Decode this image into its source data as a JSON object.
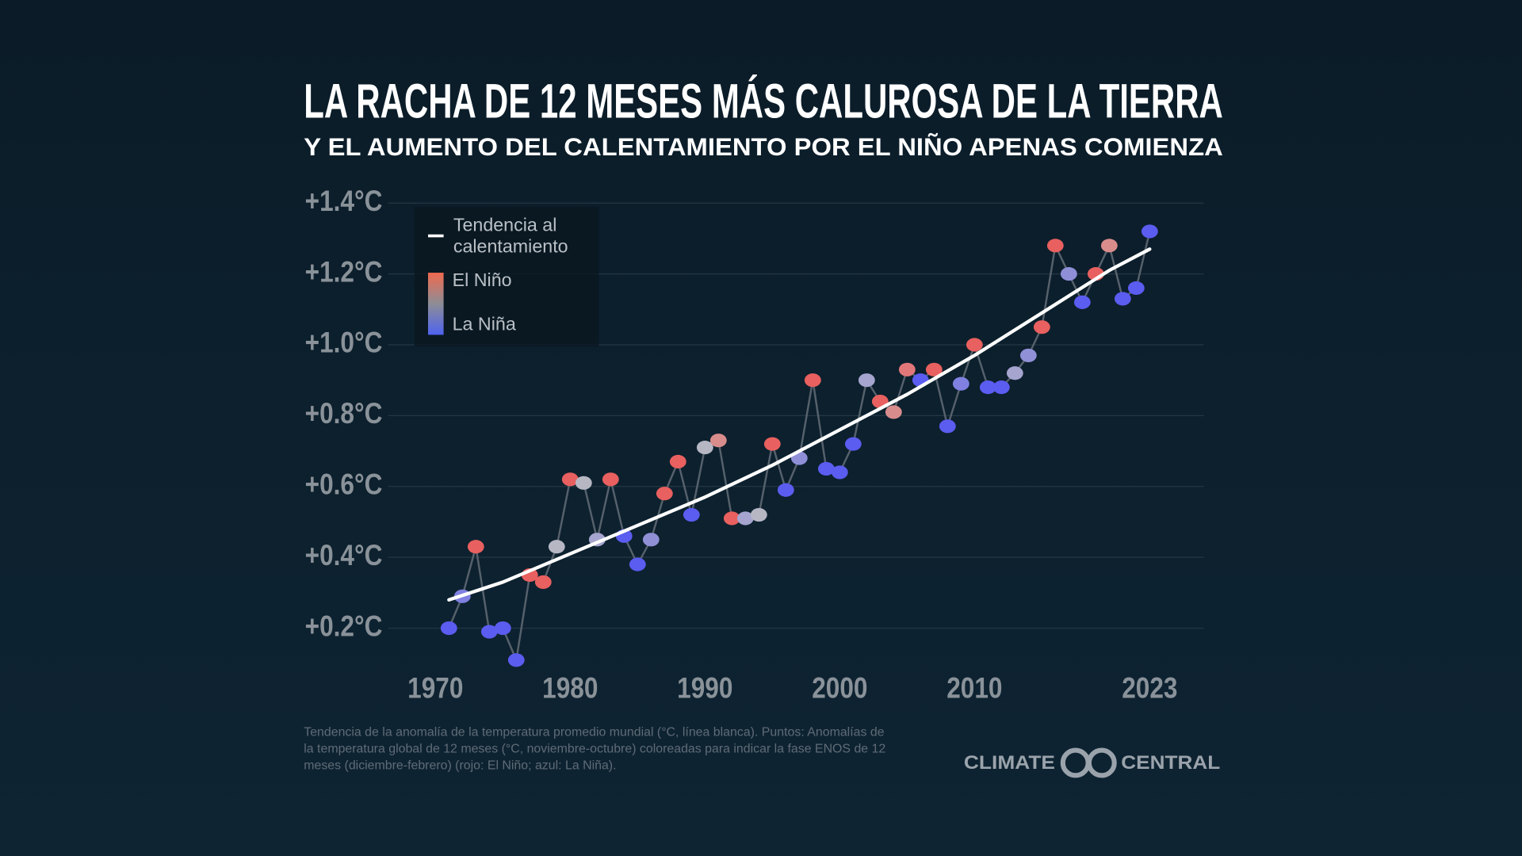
{
  "chart_data": {
    "type": "scatter",
    "title": "LA RACHA DE 12 MESES MÁS CALUROSA DE LA TIERRA",
    "subtitle": "Y EL AUMENTO DEL CALENTAMIENTO POR EL NIÑO APENAS COMIENZA",
    "xlim": [
      1966.5,
      2027
    ],
    "xticks": [
      1970,
      1980,
      1990,
      2000,
      2010,
      2023
    ],
    "ylim": [
      0.05,
      1.45
    ],
    "yticks": [
      {
        "value": 0.2,
        "label": "+0.2°C"
      },
      {
        "value": 0.4,
        "label": "+0.4°C"
      },
      {
        "value": 0.6,
        "label": "+0.6°C"
      },
      {
        "value": 0.8,
        "label": "+0.8°C"
      },
      {
        "value": 1.0,
        "label": "+1.0°C"
      },
      {
        "value": 1.2,
        "label": "+1.2°C"
      },
      {
        "value": 1.4,
        "label": "+1.4°C"
      }
    ],
    "grid": true,
    "legend": {
      "corner": "upper left",
      "trend": [
        "Tendencia al",
        "calentamiento"
      ],
      "warm": "El Niño",
      "cold": "La Niña",
      "warm_color": "#ef6a4f",
      "cold_color": "#4f63f0"
    },
    "points": {
      "line_color": "#56616c",
      "x": [
        1971,
        1972,
        1973,
        1974,
        1975,
        1976,
        1977,
        1978,
        1979,
        1980,
        1981,
        1982,
        1983,
        1984,
        1985,
        1986,
        1987,
        1988,
        1989,
        1990,
        1991,
        1992,
        1993,
        1994,
        1995,
        1996,
        1997,
        1998,
        1999,
        2000,
        2001,
        2002,
        2003,
        2004,
        2005,
        2006,
        2007,
        2008,
        2009,
        2010,
        2011,
        2012,
        2013,
        2014,
        2015,
        2016,
        2017,
        2018,
        2019,
        2020,
        2021,
        2022,
        2023
      ],
      "values": [
        0.2,
        0.29,
        0.43,
        0.19,
        0.2,
        0.11,
        0.35,
        0.33,
        0.43,
        0.62,
        0.61,
        0.45,
        0.62,
        0.46,
        0.38,
        0.45,
        0.58,
        0.67,
        0.52,
        0.71,
        0.73,
        0.51,
        0.51,
        0.52,
        0.72,
        0.59,
        0.68,
        0.9,
        0.65,
        0.64,
        0.72,
        0.9,
        0.84,
        0.81,
        0.93,
        0.9,
        0.93,
        0.77,
        0.89,
        1.0,
        0.88,
        0.88,
        0.92,
        0.97,
        1.05,
        1.28,
        1.2,
        1.12,
        1.2,
        1.28,
        1.13,
        1.16,
        1.32
      ],
      "colors": [
        "#5b5cf0",
        "#7f80e0",
        "#e8605f",
        "#5b5cf0",
        "#5b5cf0",
        "#5b5cf0",
        "#e8605f",
        "#e8605f",
        "#b7b7c4",
        "#e8605f",
        "#b7b7c4",
        "#a5a5cf",
        "#e8605f",
        "#5b5cf0",
        "#5b5cf0",
        "#9090d6",
        "#e8605f",
        "#e8605f",
        "#5b5cf0",
        "#b7b7c4",
        "#d98c8c",
        "#e8605f",
        "#a5a5cf",
        "#b7b7c4",
        "#e8605f",
        "#5b5cf0",
        "#8f8fd8",
        "#e8605f",
        "#5b5cf0",
        "#5b5cf0",
        "#5b5cf0",
        "#a5a5cf",
        "#e8605f",
        "#d98c8c",
        "#e2777a",
        "#5b5cf0",
        "#e8605f",
        "#5b5cf0",
        "#7f80e0",
        "#e8605f",
        "#5b5cf0",
        "#5b5cf0",
        "#a5a5cf",
        "#9090d6",
        "#e8605f",
        "#e8605f",
        "#8f8fd8",
        "#5b5cf0",
        "#e8605f",
        "#d98c8c",
        "#5b5cf0",
        "#5b5cf0",
        "#5b5cf0"
      ]
    },
    "trend": {
      "color": "#ffffff",
      "x": [
        1971,
        1975,
        1980,
        1985,
        1990,
        1995,
        2000,
        2005,
        2010,
        2015,
        2020,
        2023
      ],
      "values": [
        0.28,
        0.33,
        0.41,
        0.49,
        0.57,
        0.66,
        0.76,
        0.86,
        0.97,
        1.09,
        1.21,
        1.27
      ]
    },
    "footnote": [
      "Tendencia de la anomalía de la temperatura promedio mundial (°C, línea blanca). Puntos: Anomalías de",
      "la temperatura global de 12 meses (°C, noviembre-octubre) coloreadas para indicar la fase ENOS de 12",
      "meses (diciembre-febrero) (rojo: El Niño; azul: La Niña)."
    ],
    "logo": [
      "CLIMATE",
      "CENTRAL"
    ]
  }
}
